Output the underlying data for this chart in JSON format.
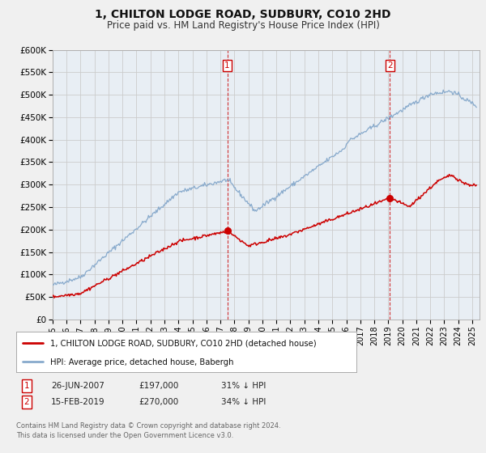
{
  "title": "1, CHILTON LODGE ROAD, SUDBURY, CO10 2HD",
  "subtitle": "Price paid vs. HM Land Registry's House Price Index (HPI)",
  "ylim": [
    0,
    600000
  ],
  "yticks": [
    0,
    50000,
    100000,
    150000,
    200000,
    250000,
    300000,
    350000,
    400000,
    450000,
    500000,
    550000,
    600000
  ],
  "ytick_labels": [
    "£0",
    "£50K",
    "£100K",
    "£150K",
    "£200K",
    "£250K",
    "£300K",
    "£350K",
    "£400K",
    "£450K",
    "£500K",
    "£550K",
    "£600K"
  ],
  "xlim_start": 1995.0,
  "xlim_end": 2025.5,
  "xtick_years": [
    1995,
    1996,
    1997,
    1998,
    1999,
    2000,
    2001,
    2002,
    2003,
    2004,
    2005,
    2006,
    2007,
    2008,
    2009,
    2010,
    2011,
    2012,
    2013,
    2014,
    2015,
    2016,
    2017,
    2018,
    2019,
    2020,
    2021,
    2022,
    2023,
    2024,
    2025
  ],
  "red_line_color": "#cc0000",
  "blue_line_color": "#88aacc",
  "marker1_x": 2007.49,
  "marker1_y": 197000,
  "marker2_x": 2019.12,
  "marker2_y": 270000,
  "vline1_x": 2007.49,
  "vline2_x": 2019.12,
  "legend_red_label": "1, CHILTON LODGE ROAD, SUDBURY, CO10 2HD (detached house)",
  "legend_blue_label": "HPI: Average price, detached house, Babergh",
  "table_row1": [
    "1",
    "26-JUN-2007",
    "£197,000",
    "31% ↓ HPI"
  ],
  "table_row2": [
    "2",
    "15-FEB-2019",
    "£270,000",
    "34% ↓ HPI"
  ],
  "footnote1": "Contains HM Land Registry data © Crown copyright and database right 2024.",
  "footnote2": "This data is licensed under the Open Government Licence v3.0.",
  "background_color": "#f0f0f0",
  "plot_bg_color": "#e8eef4",
  "grid_color": "#cccccc",
  "title_fontsize": 10,
  "subtitle_fontsize": 8.5
}
